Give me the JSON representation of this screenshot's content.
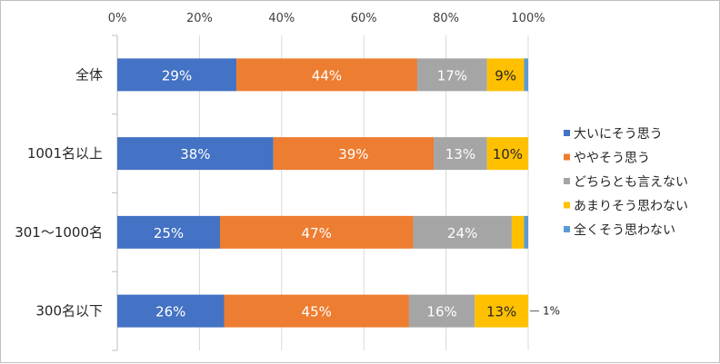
{
  "chart_data": {
    "type": "bar",
    "orientation": "horizontal",
    "stacked": "percent",
    "title": "",
    "xlabel": "",
    "ylabel": "",
    "xlim": [
      0,
      100
    ],
    "x_ticks": [
      "0%",
      "20%",
      "40%",
      "60%",
      "80%",
      "100%"
    ],
    "grid": "vertical",
    "legend_position": "right",
    "categories": [
      "全体",
      "1001名以上",
      "301～1000名",
      "300名以下"
    ],
    "series": [
      {
        "name": "大いにそう思う",
        "color": "#4472C4",
        "values": [
          29,
          38,
          25,
          26
        ],
        "labels": [
          "29%",
          "38%",
          "25%",
          "26%"
        ]
      },
      {
        "name": "ややそう思う",
        "color": "#ED7D31",
        "values": [
          44,
          39,
          47,
          45
        ],
        "labels": [
          "44%",
          "39%",
          "47%",
          "45%"
        ]
      },
      {
        "name": "どちらとも言えない",
        "color": "#A5A5A5",
        "values": [
          17,
          13,
          24,
          16
        ],
        "labels": [
          "17%",
          "13%",
          "24%",
          "16%"
        ]
      },
      {
        "name": "あまりそう思わない",
        "color": "#FFC000",
        "values": [
          9,
          10,
          3,
          13
        ],
        "labels": [
          "9%",
          "10%",
          "",
          "13%"
        ]
      },
      {
        "name": "全くそう思わない",
        "color": "#5B9BD5",
        "values": [
          1,
          0,
          1,
          1
        ],
        "labels": [
          "",
          "",
          "",
          ""
        ]
      }
    ],
    "annotations": [
      {
        "category": "300名以下",
        "text": "1%"
      }
    ]
  }
}
